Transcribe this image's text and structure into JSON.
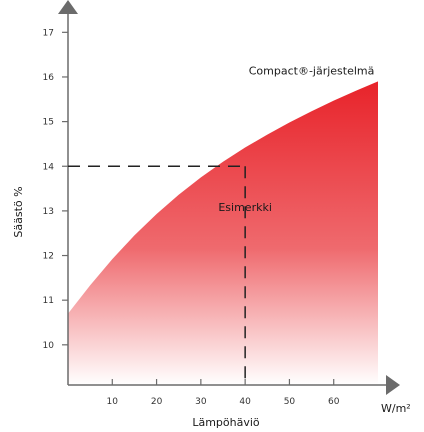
{
  "chart_data": {
    "type": "area",
    "xlabel": "Lämpöhäviö",
    "ylabel": "Säästö %",
    "x_unit": "W/m²",
    "x_ticks": [
      10,
      20,
      30,
      40,
      50,
      60
    ],
    "y_ticks": [
      10,
      11,
      12,
      13,
      14,
      15,
      16,
      17
    ],
    "xlim": [
      0,
      70
    ],
    "ylim": [
      9.1,
      17.5
    ],
    "series": [
      {
        "name": "Compact®-järjestelmä",
        "x": [
          0,
          5,
          10,
          15,
          20,
          25,
          30,
          35,
          40,
          45,
          50,
          55,
          60,
          65,
          70
        ],
        "y": [
          10.7,
          11.33,
          11.92,
          12.45,
          12.93,
          13.36,
          13.75,
          14.1,
          14.42,
          14.71,
          14.98,
          15.23,
          15.47,
          15.69,
          15.9
        ]
      }
    ],
    "example": {
      "label": "Esimerkki",
      "x": 40,
      "y": 14
    },
    "grid": false,
    "colors": {
      "fill_top": "#e8232a",
      "fill_bottom": "#ffffff",
      "axis": "#6b6b6b",
      "dashed": "#222222"
    }
  }
}
